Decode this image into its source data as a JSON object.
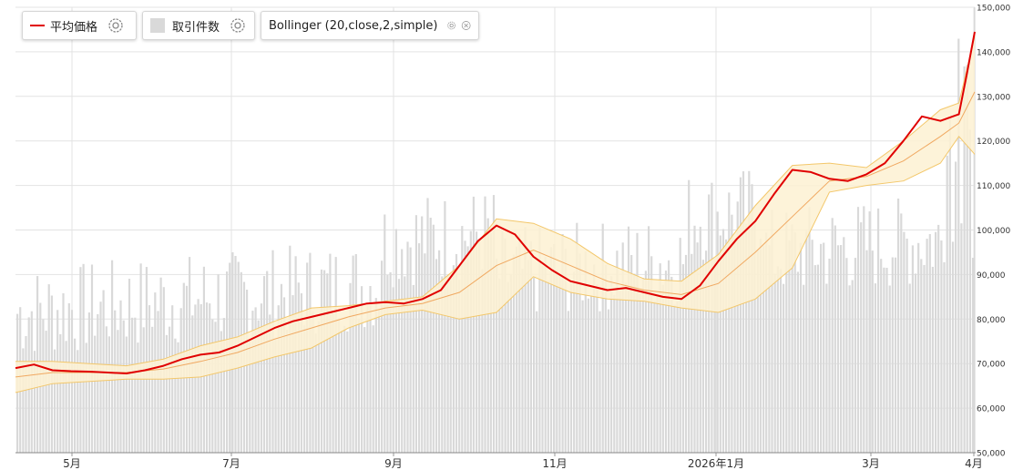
{
  "legend": {
    "price_label": "平均価格",
    "volume_label": "取引件数",
    "bollinger_label": "Bollinger (20,close,2,simple)"
  },
  "colors": {
    "price_line": "#e00000",
    "band_fill": "#fdf1d2",
    "band_edge": "#f3c76a",
    "middle_band": "#f0a860",
    "volume_bar": "#d9d9d9",
    "grid": "#e3e3e3"
  },
  "icons": {
    "price_settings": "gear-icon",
    "volume_settings": "gear-icon",
    "bollinger_settings": "gear-icon",
    "bollinger_close": "close-icon"
  },
  "chart_data": {
    "type": "line",
    "x_tick_labels": [
      "5月",
      "7月",
      "9月",
      "11月",
      "2026年1月",
      "3月",
      "4月"
    ],
    "y_tick_labels": [
      "50,000",
      "60,000",
      "70,000",
      "80,000",
      "90,000",
      "100,000",
      "110,000",
      "120,000",
      "130,000",
      "140,000",
      "150,000"
    ],
    "ylim": [
      50000,
      150000
    ],
    "grid": true,
    "legend_position": "top-left",
    "series": [
      {
        "name": "平均価格",
        "type": "line",
        "points": [
          [
            "2025-04-03",
            69000
          ],
          [
            "2025-04-10",
            69800
          ],
          [
            "2025-04-17",
            68500
          ],
          [
            "2025-04-24",
            68300
          ],
          [
            "2025-05-01",
            68200
          ],
          [
            "2025-05-08",
            68000
          ],
          [
            "2025-05-15",
            67800
          ],
          [
            "2025-05-22",
            68500
          ],
          [
            "2025-05-29",
            69500
          ],
          [
            "2025-06-05",
            71000
          ],
          [
            "2025-06-12",
            72000
          ],
          [
            "2025-06-19",
            72500
          ],
          [
            "2025-06-26",
            74000
          ],
          [
            "2025-07-03",
            76000
          ],
          [
            "2025-07-10",
            78000
          ],
          [
            "2025-07-17",
            79500
          ],
          [
            "2025-07-24",
            80500
          ],
          [
            "2025-07-31",
            81500
          ],
          [
            "2025-08-07",
            82500
          ],
          [
            "2025-08-14",
            83500
          ],
          [
            "2025-08-21",
            83800
          ],
          [
            "2025-08-28",
            83500
          ],
          [
            "2025-09-04",
            84500
          ],
          [
            "2025-09-11",
            86500
          ],
          [
            "2025-09-18",
            92000
          ],
          [
            "2025-09-25",
            97500
          ],
          [
            "2025-10-02",
            101000
          ],
          [
            "2025-10-09",
            99000
          ],
          [
            "2025-10-16",
            94000
          ],
          [
            "2025-10-23",
            91000
          ],
          [
            "2025-10-30",
            88500
          ],
          [
            "2025-11-06",
            87500
          ],
          [
            "2025-11-13",
            86500
          ],
          [
            "2025-11-20",
            87000
          ],
          [
            "2025-11-27",
            86000
          ],
          [
            "2025-12-04",
            85000
          ],
          [
            "2025-12-11",
            84500
          ],
          [
            "2025-12-18",
            87500
          ],
          [
            "2025-12-25",
            93000
          ],
          [
            "2026-01-01",
            98000
          ],
          [
            "2026-01-08",
            102000
          ],
          [
            "2026-01-15",
            108000
          ],
          [
            "2026-01-22",
            113500
          ],
          [
            "2026-01-29",
            113000
          ],
          [
            "2026-02-05",
            111500
          ],
          [
            "2026-02-12",
            111000
          ],
          [
            "2026-02-19",
            112500
          ],
          [
            "2026-02-26",
            115000
          ],
          [
            "2026-03-05",
            120000
          ],
          [
            "2026-03-12",
            125500
          ],
          [
            "2026-03-19",
            124500
          ],
          [
            "2026-03-26",
            126000
          ],
          [
            "2026-03-29",
            135000
          ],
          [
            "2026-04-01",
            144500
          ]
        ]
      },
      {
        "name": "取引件数",
        "type": "bar"
      },
      {
        "name": "Bollinger (20,close,2,simple)",
        "type": "band",
        "points": [
          [
            "2025-04-03",
            67000,
            63500,
            70500
          ],
          [
            "2025-04-17",
            68000,
            65500,
            70500
          ],
          [
            "2025-05-01",
            68000,
            66000,
            70000
          ],
          [
            "2025-05-15",
            68000,
            66500,
            69500
          ],
          [
            "2025-05-29",
            68800,
            66500,
            71000
          ],
          [
            "2025-06-12",
            70500,
            67000,
            74000
          ],
          [
            "2025-06-26",
            72500,
            69000,
            76000
          ],
          [
            "2025-07-10",
            75500,
            71500,
            79500
          ],
          [
            "2025-07-24",
            78000,
            73500,
            82500
          ],
          [
            "2025-08-07",
            80500,
            78000,
            83000
          ],
          [
            "2025-08-21",
            82500,
            81000,
            84000
          ],
          [
            "2025-09-04",
            83500,
            82000,
            85000
          ],
          [
            "2025-09-18",
            86000,
            80000,
            92000
          ],
          [
            "2025-10-02",
            92000,
            81500,
            102500
          ],
          [
            "2025-10-16",
            95500,
            89500,
            101500
          ],
          [
            "2025-10-30",
            92000,
            86000,
            98000
          ],
          [
            "2025-11-13",
            88500,
            84500,
            92500
          ],
          [
            "2025-11-27",
            86500,
            84000,
            89000
          ],
          [
            "2025-12-11",
            85500,
            82500,
            88500
          ],
          [
            "2025-12-25",
            88000,
            81500,
            94500
          ],
          [
            "2026-01-08",
            95000,
            84500,
            105500
          ],
          [
            "2026-01-22",
            103000,
            91500,
            114500
          ],
          [
            "2026-02-05",
            111000,
            108500,
            115000
          ],
          [
            "2026-02-19",
            112000,
            110000,
            114000
          ],
          [
            "2026-03-05",
            115500,
            111000,
            120000
          ],
          [
            "2026-03-19",
            121000,
            115000,
            127000
          ],
          [
            "2026-03-26",
            124000,
            121000,
            128500
          ],
          [
            "2026-04-01",
            131000,
            117000,
            143500
          ]
        ]
      }
    ]
  }
}
